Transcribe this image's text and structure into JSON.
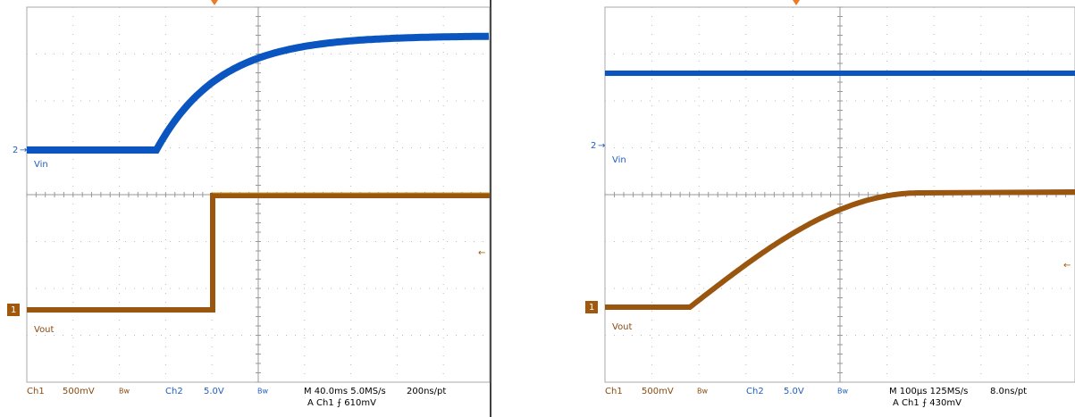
{
  "panels": [
    {
      "labels": {
        "ch2": "2",
        "vin": "Vin",
        "ch1": "1",
        "vout": "Vout"
      },
      "readout": {
        "ch1": "Ch1",
        "ch1_scale": "500mV",
        "bw1": "Bw",
        "ch2": "Ch2",
        "ch2_scale": "5.0V",
        "bw2": "Bw",
        "time": "M 40.0ms 5.0MS/s",
        "rate": "200ns/pt",
        "trigger": "A Ch1 ⨍ 610mV"
      }
    },
    {
      "labels": {
        "ch2": "2",
        "vin": "Vin",
        "ch1": "1",
        "vout": "Vout"
      },
      "readout": {
        "ch1": "Ch1",
        "ch1_scale": "500mV",
        "bw1": "Bw",
        "ch2": "Ch2",
        "ch2_scale": "5.0V",
        "bw2": "Bw",
        "time": "M 100µs 125MS/s",
        "rate": "8.0ns/pt",
        "trigger": "A Ch1 ⨍ 430mV"
      }
    }
  ]
}
